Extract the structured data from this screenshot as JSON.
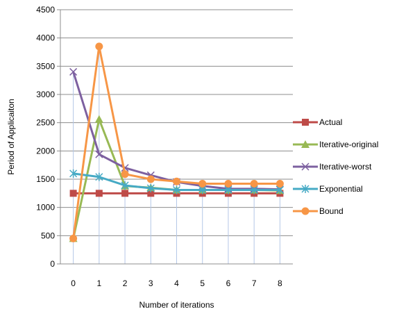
{
  "chart_data": {
    "type": "line",
    "xlabel": "Number of iterations",
    "ylabel": "Period of Applicaiton",
    "ylim": [
      0,
      4500
    ],
    "yticks": [
      "0",
      "500",
      "1000",
      "1500",
      "2000",
      "2500",
      "3000",
      "3500",
      "4000",
      "4500"
    ],
    "categories": [
      "0",
      "1",
      "2",
      "3",
      "4",
      "5",
      "6",
      "7",
      "8"
    ],
    "grid": "horizontal and vertical",
    "legend_position": "right",
    "series": [
      {
        "name": "Actual",
        "color": "#be4b48",
        "marker": "square",
        "values": [
          1250,
          1250,
          1250,
          1250,
          1250,
          1250,
          1250,
          1250,
          1250
        ]
      },
      {
        "name": "Iterative-original",
        "color": "#98b954",
        "marker": "triangle",
        "values": [
          450,
          2560,
          1380,
          1350,
          1310,
          1310,
          1310,
          1310,
          1300
        ]
      },
      {
        "name": "Iterative-worst",
        "color": "#7d60a0",
        "marker": "x",
        "values": [
          3400,
          1940,
          1700,
          1570,
          1450,
          1380,
          1330,
          1330,
          1320
        ]
      },
      {
        "name": "Exponential",
        "color": "#46aac5",
        "marker": "star",
        "values": [
          1600,
          1540,
          1390,
          1340,
          1310,
          1310,
          1310,
          1310,
          1310
        ]
      },
      {
        "name": "Bound",
        "color": "#f79646",
        "marker": "circle",
        "values": [
          450,
          3850,
          1590,
          1500,
          1460,
          1420,
          1420,
          1420,
          1420
        ]
      }
    ]
  }
}
